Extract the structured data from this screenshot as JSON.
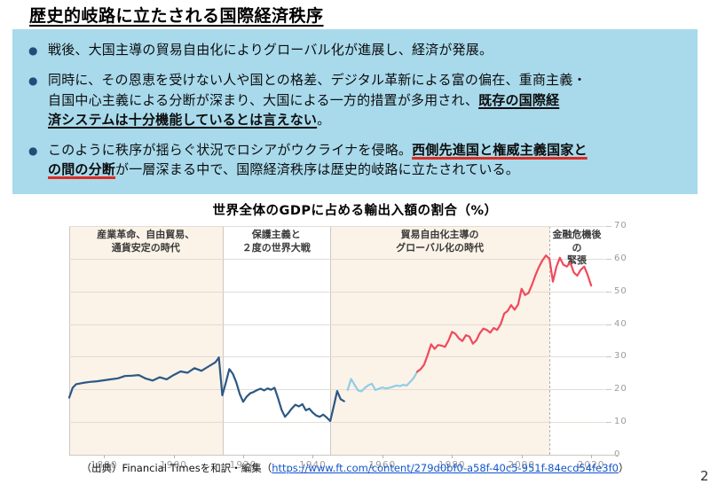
{
  "page": {
    "title": "歴史的岐路に立たされる国際経済秩序",
    "page_number": "2"
  },
  "box": {
    "background": "#a8daec",
    "bullet_color": "#1f4e79",
    "red_underline_color": "#e02a20",
    "bullets": [
      {
        "lines": [
          [
            {
              "t": "戦後、大国主導の貿易自由化によりグローバル化が進展し、経済が発展。",
              "s": ""
            }
          ]
        ]
      },
      {
        "lines": [
          [
            {
              "t": "同時に、その恩恵を受けない人や国との格差、デジタル革新による富の偏在、重商主義・",
              "s": ""
            }
          ],
          [
            {
              "t": "自国中心主義による分断が深まり、大国による一方的措置が多用され、",
              "s": ""
            },
            {
              "t": "既存の国際経",
              "s": "bu"
            }
          ],
          [
            {
              "t": "済システムは十分機能しているとは言えない",
              "s": "bu"
            },
            {
              "t": "。",
              "s": ""
            }
          ]
        ]
      },
      {
        "lines": [
          [
            {
              "t": "このように秩序が揺らぐ状況でロシアがウクライナを侵略。",
              "s": ""
            },
            {
              "t": "西側先進国と権威主義国家と",
              "s": "br"
            }
          ],
          [
            {
              "t": "の間の分断",
              "s": "br"
            },
            {
              "t": "が一層深まる中で、国際経済秩序は歴史的岐路に立たされている。",
              "s": ""
            }
          ]
        ]
      }
    ]
  },
  "chart_data": {
    "type": "line",
    "title": "世界全体のGDPに占める輸出入額の割合（%）",
    "xlabel": "",
    "ylabel": "",
    "xlim": [
      1870,
      2024
    ],
    "ylim": [
      0,
      70
    ],
    "grid": true,
    "legend": "none",
    "x_ticks": [
      1880,
      1900,
      1920,
      1940,
      1960,
      1980,
      2000,
      2020
    ],
    "y_ticks": [
      0,
      10,
      20,
      30,
      40,
      50,
      60,
      70
    ],
    "eras": [
      {
        "label": "産業革命、自由貿易、\n通貨安定の時代",
        "start": 1870,
        "end": 1914,
        "bg": "#fbf2e8",
        "divider": "none"
      },
      {
        "label": "保護主義と\n２度の世界大戦",
        "start": 1914,
        "end": 1945,
        "bg": "#ffffff",
        "divider": "solid"
      },
      {
        "label": "貿易自由化主導の\nグローバル化の時代",
        "start": 1945,
        "end": 2008,
        "bg": "#fbf2e8",
        "divider": "solid"
      },
      {
        "label": "金融危機後の\n緊張",
        "start": 2008,
        "end": 2024,
        "bg": "#ffffff",
        "divider": "dashed"
      }
    ],
    "series": [
      {
        "name": "prewar-navy",
        "color": "#2b5884",
        "points": [
          [
            1870,
            17.5
          ],
          [
            1871,
            20.5
          ],
          [
            1872,
            21.6
          ],
          [
            1874,
            22.0
          ],
          [
            1876,
            22.3
          ],
          [
            1878,
            22.5
          ],
          [
            1880,
            22.8
          ],
          [
            1882,
            23.1
          ],
          [
            1884,
            23.4
          ],
          [
            1886,
            24.1
          ],
          [
            1888,
            24.2
          ],
          [
            1890,
            24.4
          ],
          [
            1892,
            23.3
          ],
          [
            1894,
            22.7
          ],
          [
            1896,
            23.7
          ],
          [
            1898,
            23.1
          ],
          [
            1900,
            24.4
          ],
          [
            1902,
            25.5
          ],
          [
            1904,
            25.1
          ],
          [
            1906,
            26.5
          ],
          [
            1908,
            25.7
          ],
          [
            1910,
            27.0
          ],
          [
            1912,
            28.3
          ],
          [
            1913,
            29.8
          ],
          [
            1914,
            18.2
          ],
          [
            1915,
            22.0
          ],
          [
            1916,
            26.2
          ],
          [
            1917,
            24.8
          ],
          [
            1918,
            22.2
          ],
          [
            1919,
            18.6
          ],
          [
            1920,
            16.2
          ],
          [
            1921,
            17.8
          ],
          [
            1922,
            18.8
          ],
          [
            1923,
            19.2
          ],
          [
            1924,
            19.8
          ],
          [
            1925,
            20.2
          ],
          [
            1926,
            19.7
          ],
          [
            1927,
            20.3
          ],
          [
            1928,
            19.9
          ],
          [
            1929,
            20.5
          ],
          [
            1930,
            17.4
          ],
          [
            1931,
            13.8
          ],
          [
            1932,
            11.6
          ],
          [
            1933,
            12.8
          ],
          [
            1934,
            14.2
          ],
          [
            1935,
            15.3
          ],
          [
            1936,
            14.8
          ],
          [
            1937,
            15.5
          ],
          [
            1938,
            13.6
          ],
          [
            1939,
            14.1
          ],
          [
            1940,
            12.9
          ],
          [
            1941,
            12.0
          ],
          [
            1942,
            11.6
          ],
          [
            1943,
            12.3
          ],
          [
            1944,
            11.4
          ],
          [
            1945,
            10.3
          ],
          [
            1946,
            14.8
          ],
          [
            1947,
            19.5
          ],
          [
            1948,
            17.0
          ],
          [
            1949,
            16.4
          ]
        ]
      },
      {
        "name": "postwar-lightblue",
        "color": "#8fcde8",
        "points": [
          [
            1950,
            19.8
          ],
          [
            1951,
            23.2
          ],
          [
            1952,
            21.4
          ],
          [
            1953,
            19.7
          ],
          [
            1954,
            19.4
          ],
          [
            1955,
            20.5
          ],
          [
            1956,
            21.3
          ],
          [
            1957,
            21.7
          ],
          [
            1958,
            19.8
          ],
          [
            1959,
            20.2
          ],
          [
            1960,
            20.6
          ],
          [
            1961,
            20.3
          ],
          [
            1962,
            20.5
          ],
          [
            1963,
            20.8
          ],
          [
            1964,
            21.2
          ],
          [
            1965,
            21.0
          ],
          [
            1966,
            21.4
          ],
          [
            1967,
            21.2
          ],
          [
            1968,
            22.3
          ],
          [
            1969,
            23.5
          ],
          [
            1970,
            25.4
          ]
        ]
      },
      {
        "name": "globalization-red",
        "color": "#ef4a5b",
        "points": [
          [
            1970,
            25.4
          ],
          [
            1971,
            26.2
          ],
          [
            1972,
            27.6
          ],
          [
            1973,
            30.5
          ],
          [
            1974,
            33.8
          ],
          [
            1975,
            32.4
          ],
          [
            1976,
            33.6
          ],
          [
            1977,
            33.4
          ],
          [
            1978,
            33.0
          ],
          [
            1979,
            35.0
          ],
          [
            1980,
            37.6
          ],
          [
            1981,
            37.0
          ],
          [
            1982,
            35.6
          ],
          [
            1983,
            34.8
          ],
          [
            1984,
            36.6
          ],
          [
            1985,
            36.2
          ],
          [
            1986,
            34.0
          ],
          [
            1987,
            35.0
          ],
          [
            1988,
            37.2
          ],
          [
            1989,
            38.6
          ],
          [
            1990,
            38.2
          ],
          [
            1991,
            37.4
          ],
          [
            1992,
            38.8
          ],
          [
            1993,
            38.2
          ],
          [
            1994,
            40.0
          ],
          [
            1995,
            43.2
          ],
          [
            1996,
            44.0
          ],
          [
            1997,
            45.8
          ],
          [
            1998,
            44.4
          ],
          [
            1999,
            46.0
          ],
          [
            2000,
            50.8
          ],
          [
            2001,
            48.9
          ],
          [
            2002,
            49.5
          ],
          [
            2003,
            52.0
          ],
          [
            2004,
            55.0
          ],
          [
            2005,
            57.5
          ],
          [
            2006,
            59.5
          ],
          [
            2007,
            61.0
          ],
          [
            2008,
            60.0
          ],
          [
            2009,
            53.0
          ],
          [
            2010,
            57.5
          ],
          [
            2011,
            60.3
          ],
          [
            2012,
            58.2
          ],
          [
            2013,
            57.6
          ],
          [
            2014,
            58.8
          ],
          [
            2015,
            55.8
          ],
          [
            2016,
            54.8
          ],
          [
            2017,
            56.6
          ],
          [
            2018,
            57.6
          ],
          [
            2019,
            55.0
          ],
          [
            2020,
            51.8
          ]
        ]
      }
    ]
  },
  "source": {
    "prefix": "（出典）Financial Timesを和訳・編集（",
    "link": "https://www.ft.com/content/279d0bf0-a58f-40c5-951f-84ecd54fe3f0",
    "suffix": "）"
  }
}
